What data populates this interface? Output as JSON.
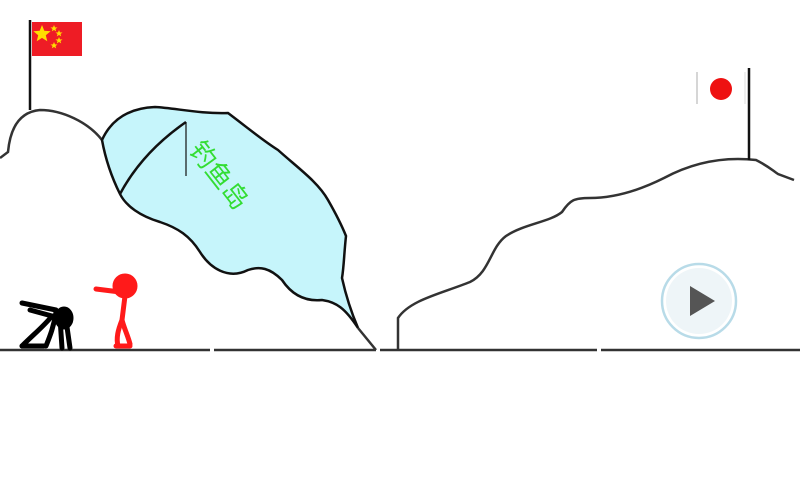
{
  "scene": {
    "island_label": "钓鱼岛",
    "flags": {
      "left": {
        "name": "china-flag",
        "color": "#ee1c25",
        "star_color": "#ffde00"
      },
      "right": {
        "name": "japan-flag",
        "color": "#ee1111",
        "field_color": "#ffffff"
      }
    },
    "island_fill": "#c6f5fb",
    "figures": {
      "black": {
        "name": "black-stick-figure-bending",
        "color": "#000000"
      },
      "red": {
        "name": "red-stick-figure-pointing",
        "color": "#ff1a1a"
      }
    }
  },
  "controls": {
    "play": {
      "icon": "play-icon",
      "fill": "#555555",
      "ring": "#b8dbe8",
      "background": "#eef5f8"
    }
  }
}
